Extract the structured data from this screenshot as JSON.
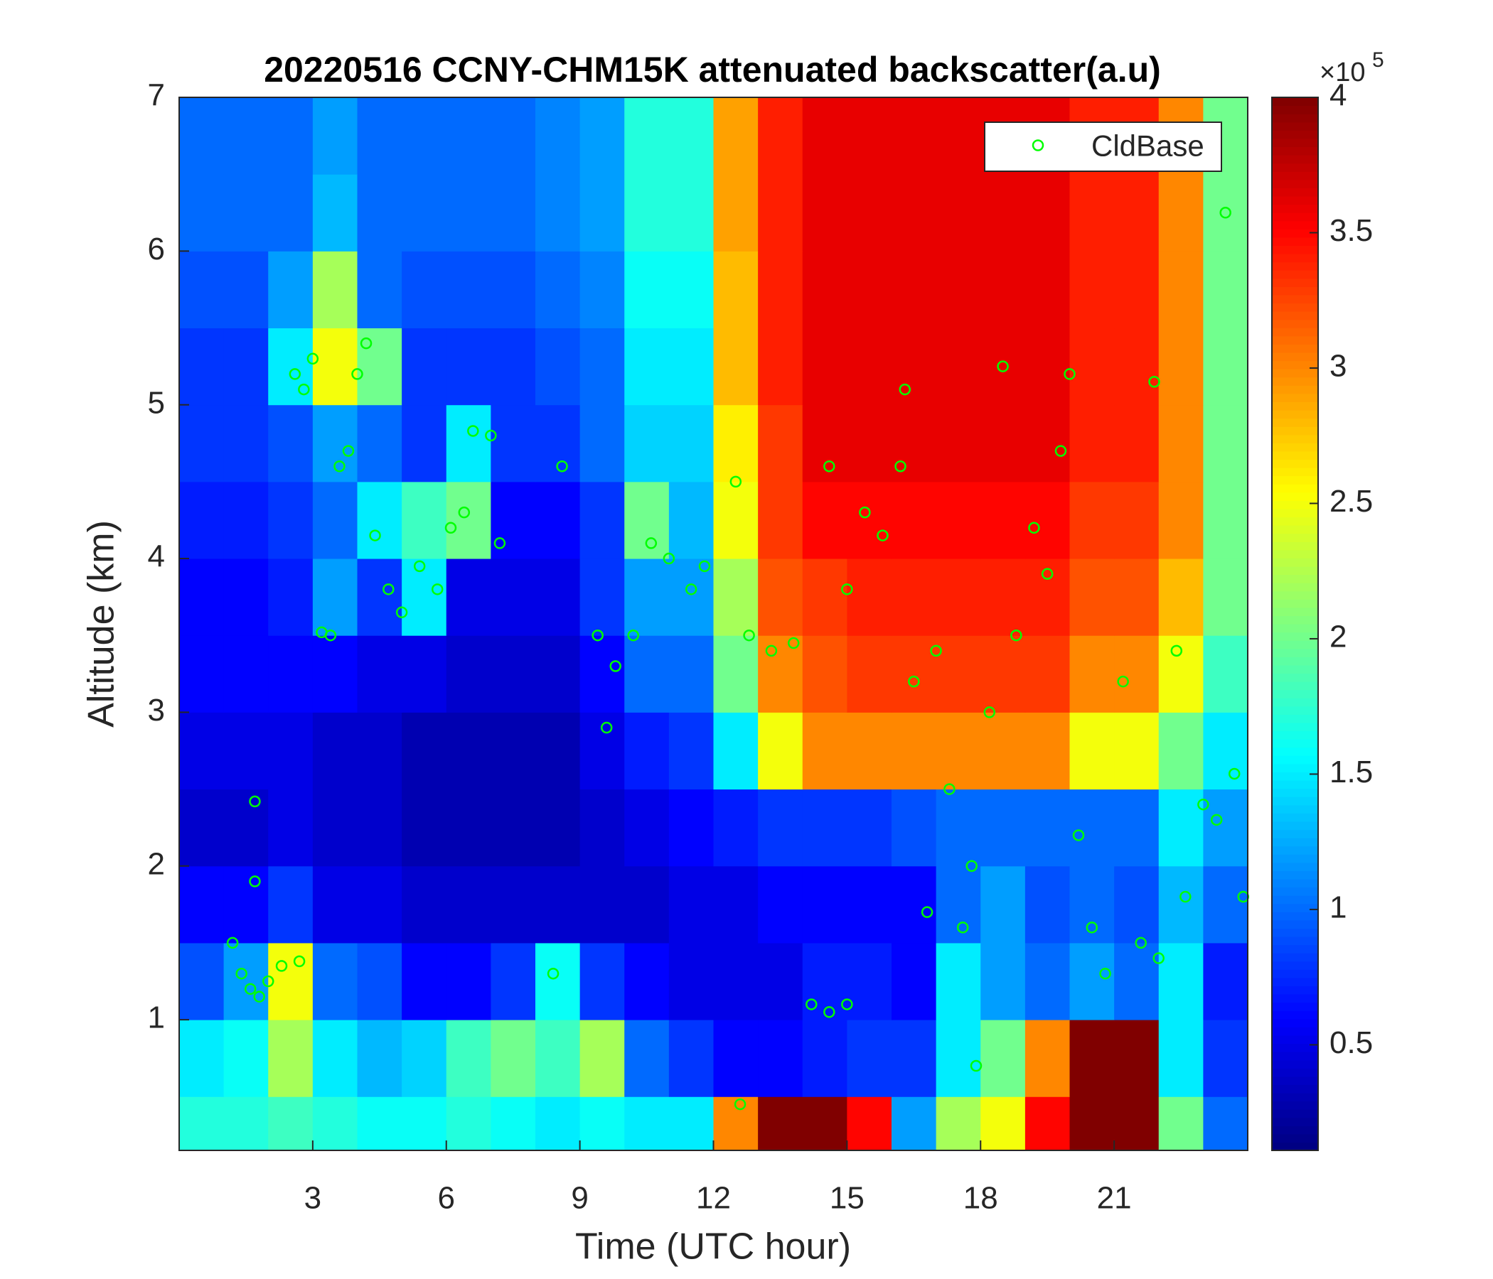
{
  "chart_data": {
    "type": "heatmap",
    "title": "20220516 CCNY-CHM15K attenuated backscatter(a.u)",
    "x_label": "Time (UTC hour)",
    "y_label": "Altitude (km)",
    "xlim": [
      0,
      24
    ],
    "xticks": [
      3,
      6,
      9,
      12,
      15,
      18,
      21
    ],
    "ylim": [
      0.15,
      7
    ],
    "yticks": [
      1,
      2,
      3,
      4,
      5,
      6,
      7
    ],
    "x_bins": [
      0,
      1,
      2,
      3,
      4,
      5,
      6,
      7,
      8,
      9,
      10,
      11,
      12,
      13,
      14,
      15,
      16,
      17,
      18,
      19,
      20,
      21,
      22,
      23,
      24
    ],
    "y_bins": [
      0.15,
      0.5,
      1,
      1.5,
      2,
      2.5,
      3,
      3.5,
      4,
      4.5,
      5,
      5.5,
      6,
      6.5,
      7
    ],
    "z": [
      [
        1.7,
        1.7,
        1.8,
        1.7,
        1.6,
        1.6,
        1.7,
        1.6,
        1.5,
        1.6,
        1.5,
        1.5,
        3.0,
        4,
        4,
        3.5,
        1.2,
        2.2,
        2.5,
        3.5,
        4,
        4,
        2.0,
        1.0
      ],
      [
        1.5,
        1.6,
        2.2,
        1.5,
        1.3,
        1.4,
        1.8,
        2,
        1.8,
        2.2,
        1.0,
        0.8,
        0.6,
        0.6,
        0.7,
        0.8,
        0.8,
        1.5,
        2.0,
        3,
        4,
        4,
        1.5,
        0.8
      ],
      [
        0.9,
        1.2,
        2.5,
        1.0,
        0.9,
        0.6,
        0.6,
        0.8,
        1.6,
        0.8,
        0.6,
        0.5,
        0.5,
        0.5,
        0.7,
        0.7,
        0.6,
        1.5,
        1.2,
        1.0,
        1.2,
        1.0,
        1.5,
        0.7
      ],
      [
        0.6,
        0.6,
        0.8,
        0.5,
        0.5,
        0.4,
        0.4,
        0.4,
        0.4,
        0.4,
        0.4,
        0.5,
        0.5,
        0.6,
        0.6,
        0.6,
        0.6,
        1.0,
        1.2,
        0.9,
        1.0,
        0.9,
        1.3,
        1.0
      ],
      [
        0.4,
        0.4,
        0.5,
        0.4,
        0.4,
        0.3,
        0.3,
        0.3,
        0.3,
        0.4,
        0.5,
        0.6,
        0.7,
        0.8,
        0.8,
        0.8,
        0.9,
        1.0,
        1.0,
        1.0,
        1.0,
        1.0,
        1.5,
        1.2
      ],
      [
        0.5,
        0.5,
        0.5,
        0.4,
        0.4,
        0.3,
        0.3,
        0.3,
        0.3,
        0.5,
        0.7,
        0.8,
        1.5,
        2.5,
        3,
        3,
        3,
        3,
        3,
        3,
        2.5,
        2.5,
        2,
        1.5
      ],
      [
        0.6,
        0.6,
        0.6,
        0.6,
        0.5,
        0.5,
        0.4,
        0.4,
        0.4,
        0.6,
        1.0,
        1.0,
        2,
        3,
        3.2,
        3.3,
        3.3,
        3.3,
        3.3,
        3.3,
        3,
        3,
        2.5,
        1.8
      ],
      [
        0.6,
        0.6,
        0.7,
        1.2,
        0.8,
        1.5,
        0.5,
        0.5,
        0.5,
        0.8,
        1.2,
        1.2,
        2.2,
        3.2,
        3.3,
        3.4,
        3.4,
        3.4,
        3.4,
        3.4,
        3.2,
        3.2,
        2.8,
        2
      ],
      [
        0.7,
        0.7,
        0.8,
        1.0,
        1.5,
        1.8,
        2.0,
        0.6,
        0.6,
        0.8,
        2.0,
        1.3,
        2.5,
        3.3,
        3.5,
        3.5,
        3.5,
        3.5,
        3.5,
        3.5,
        3.3,
        3.3,
        3,
        2
      ],
      [
        0.8,
        0.8,
        0.9,
        1.2,
        1.0,
        0.8,
        1.5,
        0.8,
        0.8,
        1.0,
        1.4,
        1.4,
        2.6,
        3.3,
        3.6,
        3.6,
        3.6,
        3.6,
        3.6,
        3.6,
        3.4,
        3.4,
        3,
        2
      ],
      [
        0.8,
        0.8,
        1.5,
        2.5,
        2.0,
        0.8,
        0.8,
        0.8,
        0.9,
        1.0,
        1.5,
        1.5,
        2.8,
        3.4,
        3.6,
        3.6,
        3.6,
        3.6,
        3.6,
        3.6,
        3.4,
        3.4,
        3,
        2
      ],
      [
        0.9,
        0.9,
        1.2,
        2.2,
        1.0,
        0.9,
        0.9,
        0.9,
        1.0,
        1.1,
        1.6,
        1.6,
        2.8,
        3.4,
        3.6,
        3.6,
        3.6,
        3.6,
        3.6,
        3.6,
        3.4,
        3.4,
        3,
        2
      ],
      [
        1,
        1,
        1,
        1.3,
        1,
        1,
        1,
        1,
        1.1,
        1.2,
        1.7,
        1.7,
        2.9,
        3.4,
        3.6,
        3.6,
        3.6,
        3.6,
        3.6,
        3.6,
        3.4,
        3.4,
        3,
        2
      ],
      [
        1,
        1,
        1,
        1.2,
        1,
        1,
        1,
        1,
        1.1,
        1.2,
        1.7,
        1.7,
        2.9,
        3.4,
        3.6,
        3.6,
        3.6,
        3.6,
        3.6,
        3.6,
        3.4,
        3.4,
        3,
        2
      ]
    ],
    "clim": [
      0.11,
      4
    ],
    "cticks": [
      0.5,
      1,
      1.5,
      2,
      2.5,
      3,
      3.5,
      4
    ],
    "colorbar_multiplier": {
      "base": "×10",
      "exponent": "5"
    },
    "colormap": "jet",
    "legend_position": "upper right",
    "series": [
      {
        "name": "CldBase",
        "type": "scatter",
        "color": "#00ff00",
        "x": [
          1.2,
          1.4,
          1.6,
          1.8,
          2.0,
          2.3,
          2.7,
          1.7,
          1.7,
          2.6,
          2.8,
          3.0,
          3.2,
          3.4,
          3.6,
          3.8,
          4.0,
          4.2,
          4.4,
          4.7,
          5.0,
          5.4,
          5.8,
          6.1,
          6.4,
          6.6,
          7.0,
          7.2,
          8.4,
          8.6,
          9.4,
          9.6,
          9.8,
          10.2,
          10.6,
          11.0,
          11.5,
          11.8,
          12.5,
          12.6,
          12.8,
          13.3,
          13.8,
          14.2,
          14.6,
          15.0,
          14.6,
          15.0,
          15.4,
          15.8,
          16.2,
          16.3,
          16.5,
          16.8,
          17.0,
          17.3,
          17.6,
          17.8,
          17.9,
          18.2,
          18.5,
          18.8,
          19.2,
          19.5,
          19.8,
          20.0,
          20.2,
          20.5,
          20.8,
          21.2,
          21.6,
          21.9,
          22.0,
          22.4,
          22.6,
          23.0,
          23.3,
          23.5,
          23.7,
          23.9
        ],
        "y": [
          1.5,
          1.3,
          1.2,
          1.15,
          1.25,
          1.35,
          1.38,
          2.42,
          1.9,
          5.2,
          5.1,
          5.3,
          3.52,
          3.5,
          4.6,
          4.7,
          5.2,
          5.4,
          4.15,
          3.8,
          3.65,
          3.95,
          3.8,
          4.2,
          4.3,
          4.83,
          4.8,
          4.1,
          1.3,
          4.6,
          3.5,
          2.9,
          3.3,
          3.5,
          4.1,
          4.0,
          3.8,
          3.95,
          4.5,
          0.45,
          3.5,
          3.4,
          3.45,
          1.1,
          1.05,
          1.1,
          4.6,
          3.8,
          4.3,
          4.15,
          4.6,
          5.1,
          3.2,
          1.7,
          3.4,
          2.5,
          1.6,
          2.0,
          0.7,
          3.0,
          5.25,
          3.5,
          4.2,
          3.9,
          4.7,
          5.2,
          2.2,
          1.6,
          1.3,
          3.2,
          1.5,
          5.15,
          1.4,
          3.4,
          1.8,
          2.4,
          2.3,
          6.25,
          2.6,
          1.8
        ]
      }
    ]
  }
}
